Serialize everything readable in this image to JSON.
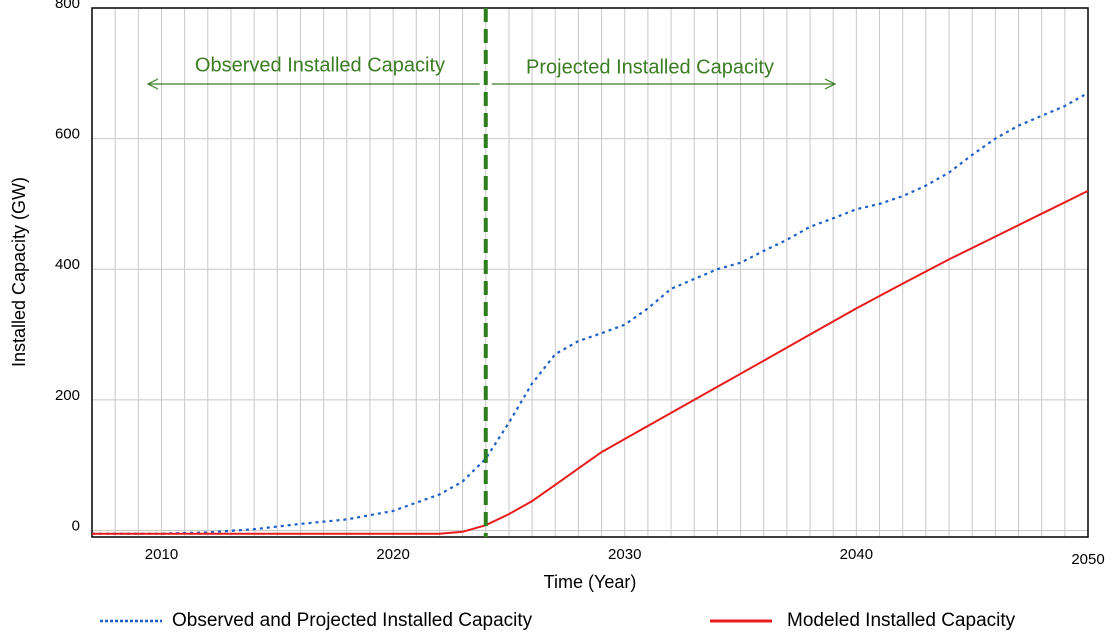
{
  "chart_data": {
    "type": "line",
    "x_label": "Time (Year)",
    "y_label": "Installed Capacity (GW)",
    "xlim": [
      2007,
      2050
    ],
    "ylim": [
      -10,
      800
    ],
    "xticks": [
      2010,
      2020,
      2030,
      2040,
      2050
    ],
    "yticks": [
      0,
      200,
      400,
      600,
      800
    ],
    "grid": true,
    "xgrid_step": 1,
    "legend": "bottom",
    "vline_x": 2024,
    "vline_color": "#2e7d1f",
    "annotations": [
      "Observed Installed Capacity",
      "Projected Installed Capacity"
    ],
    "annotation_color": "#3b7d23",
    "series": [
      {
        "name": "Observed and Projected Installed Capacity",
        "color": "#1f5fc8",
        "style": "dotted",
        "x": [
          2007,
          2010,
          2012,
          2014,
          2016,
          2018,
          2020,
          2022,
          2023,
          2024,
          2025,
          2026,
          2027,
          2028,
          2029,
          2030,
          2031,
          2032,
          2033,
          2034,
          2035,
          2036,
          2037,
          2038,
          2039,
          2040,
          2041,
          2042,
          2043,
          2044,
          2045,
          2046,
          2047,
          2048,
          2049,
          2050
        ],
        "values": [
          -5,
          -5,
          -3,
          2,
          10,
          17,
          30,
          55,
          75,
          110,
          165,
          225,
          270,
          290,
          302,
          315,
          340,
          370,
          385,
          400,
          410,
          428,
          445,
          465,
          478,
          492,
          500,
          512,
          528,
          548,
          575,
          600,
          620,
          635,
          650,
          670
        ]
      },
      {
        "name": "Modeled Installed Capacity",
        "color": "#e81c1c",
        "style": "solid",
        "x": [
          2007,
          2022,
          2023,
          2024,
          2025,
          2026,
          2027,
          2028,
          2029,
          2030,
          2032,
          2034,
          2036,
          2038,
          2040,
          2042,
          2044,
          2046,
          2048,
          2050
        ],
        "values": [
          -5,
          -5,
          -2,
          8,
          25,
          45,
          70,
          95,
          120,
          140,
          180,
          220,
          260,
          300,
          340,
          378,
          415,
          450,
          485,
          520
        ]
      }
    ]
  }
}
